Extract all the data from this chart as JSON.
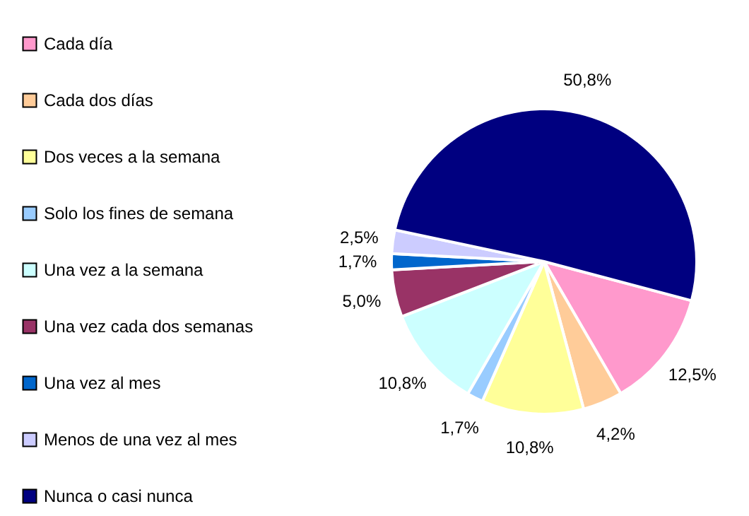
{
  "chart_data": {
    "type": "pie",
    "categories": [
      "Cada día",
      "Cada dos días",
      "Dos veces a la semana",
      "Solo los fines de semana",
      "Una vez a la semana",
      "Una vez cada dos semanas",
      "Una vez al mes",
      "Menos de una vez al mes",
      "Nunca o casi nunca"
    ],
    "values": [
      12.5,
      4.2,
      10.8,
      1.7,
      10.8,
      5.0,
      1.7,
      2.5,
      50.8
    ],
    "value_labels": [
      "12,5%",
      "4,2%",
      "10,8%",
      "1,7%",
      "10,8%",
      "5,0%",
      "1,7%",
      "2,5%",
      "50,8%"
    ],
    "colors": [
      "#ff99cc",
      "#ffcc99",
      "#ffff99",
      "#99ccff",
      "#ccffff",
      "#993366",
      "#0066cc",
      "#ccccff",
      "#000080"
    ],
    "legend": "left"
  }
}
